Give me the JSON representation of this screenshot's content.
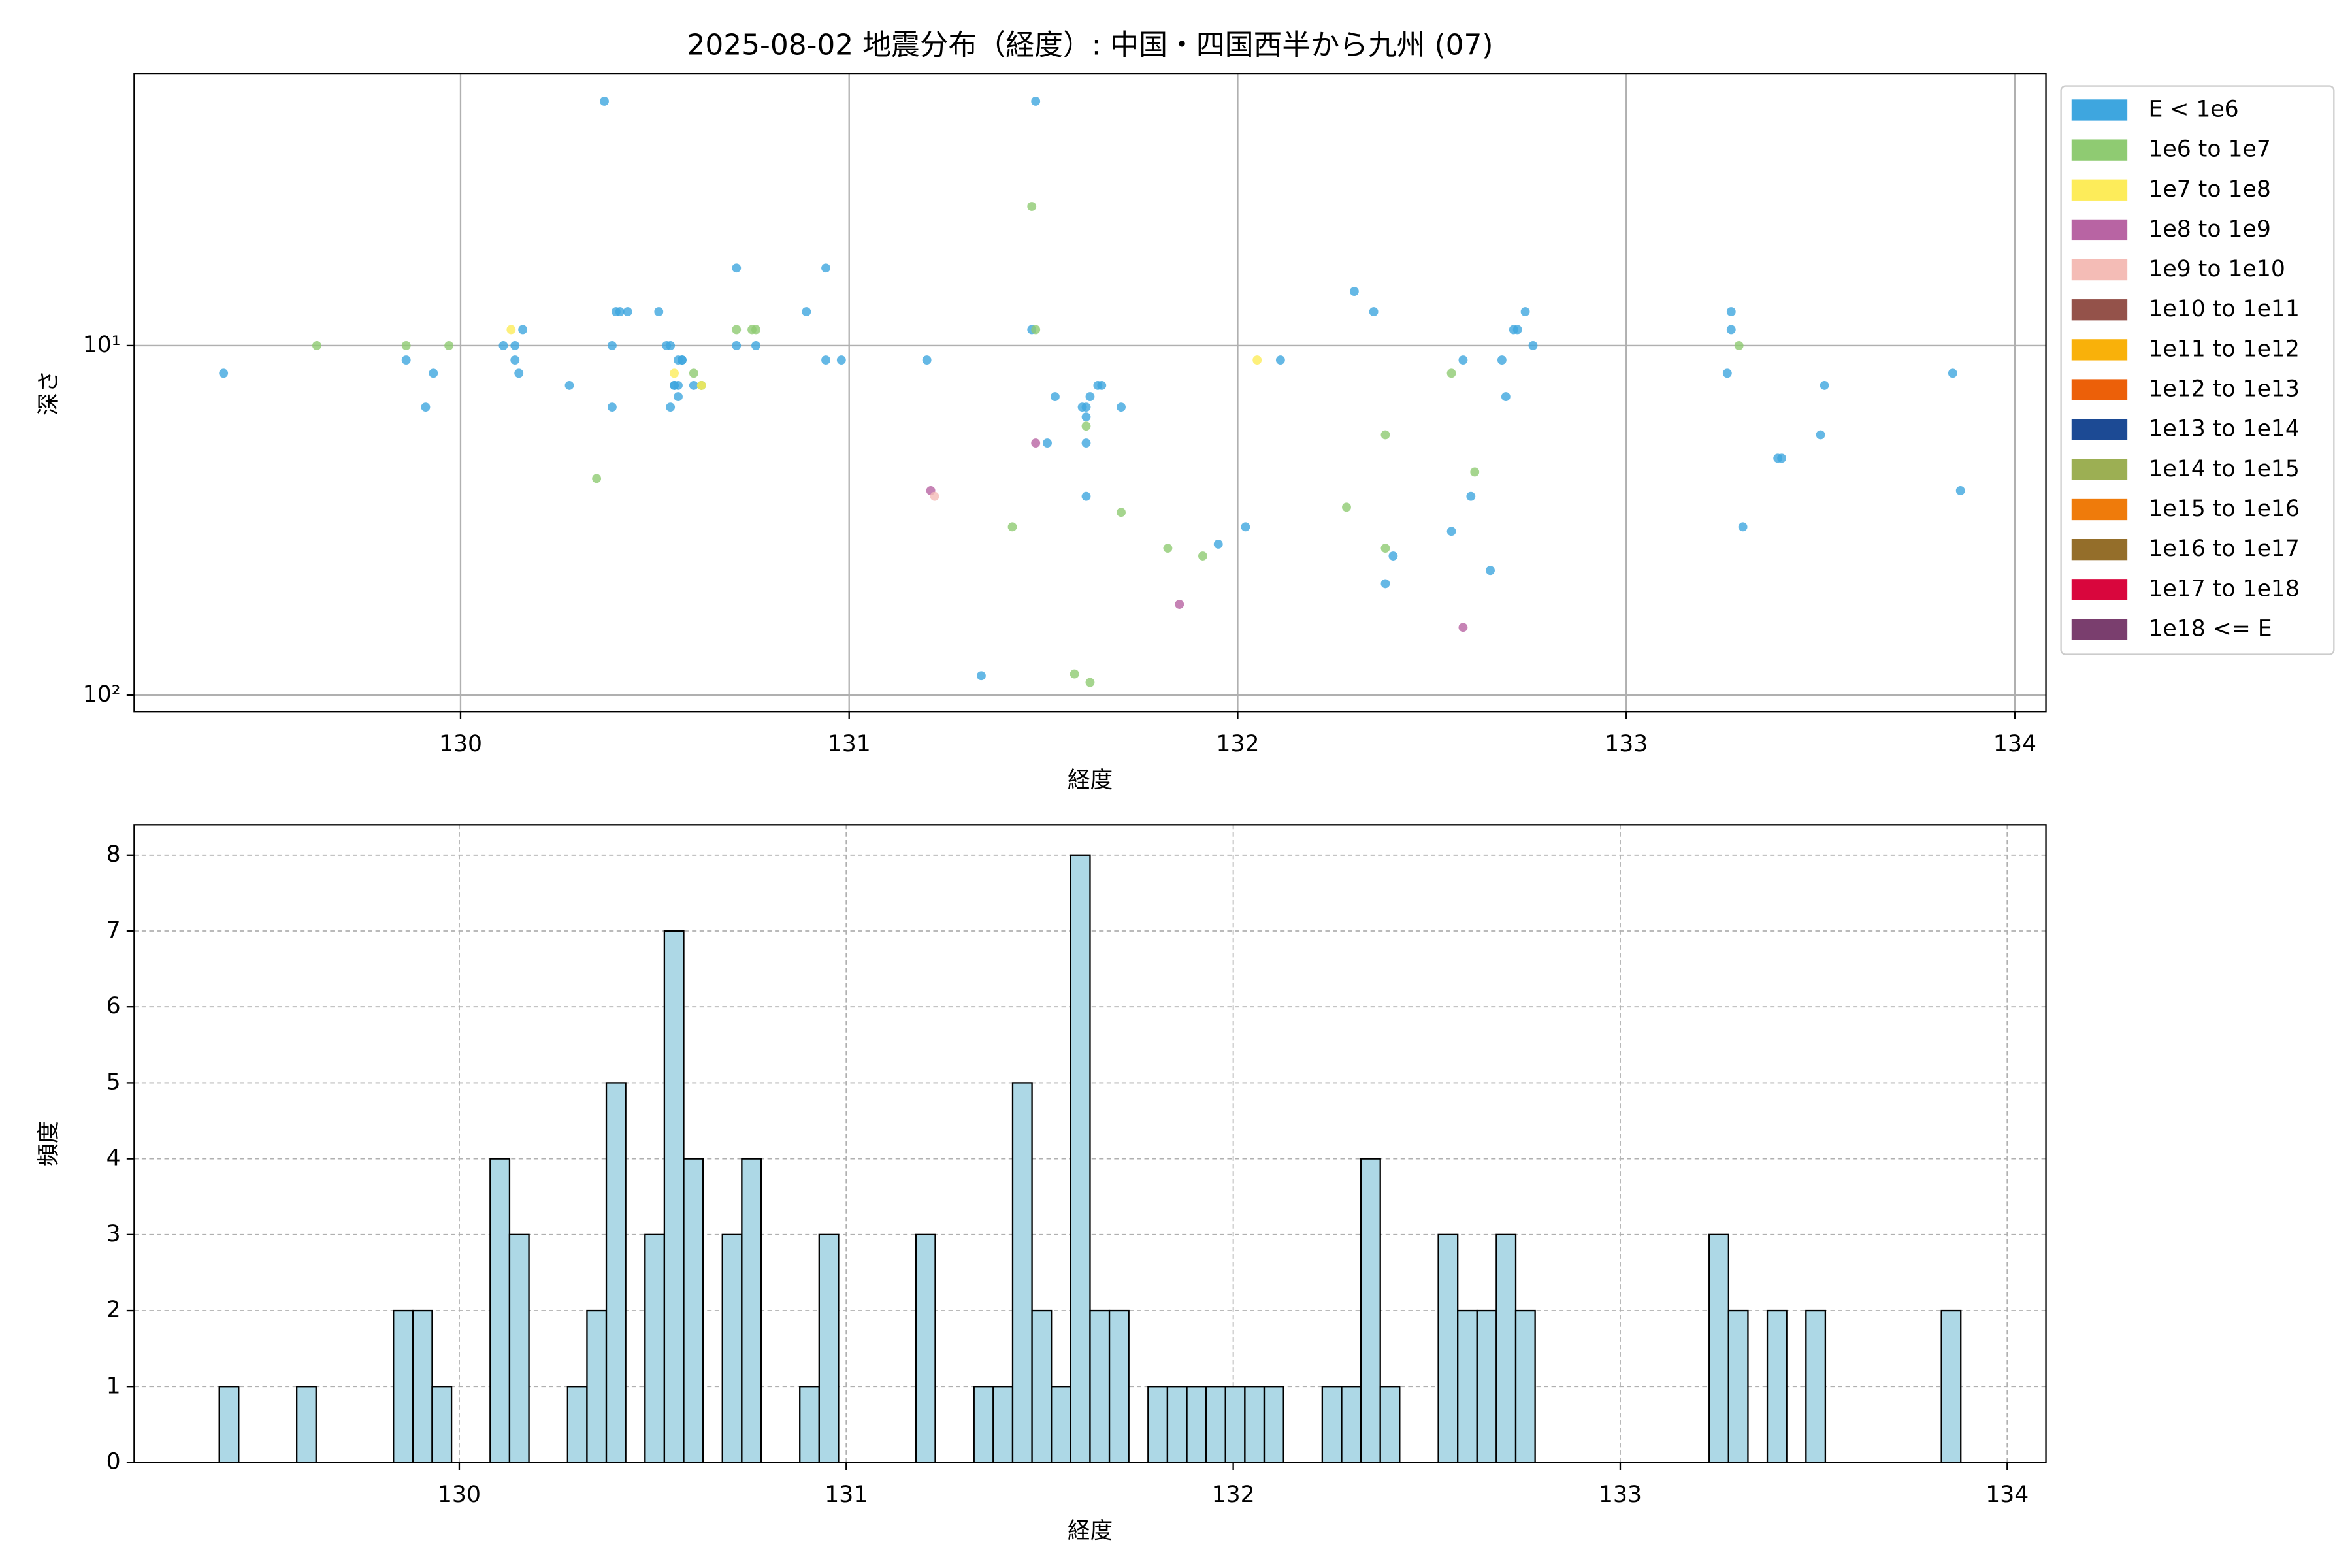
{
  "chart_data": [
    {
      "type": "scatter",
      "title": "2025-08-02 地震分布（経度）: 中国・四国西半から九州 (07)",
      "x_label": "経度",
      "y_label": "深さ",
      "xlim": [
        129.16,
        134.08
      ],
      "xticks": [
        130,
        131,
        132,
        133,
        134
      ],
      "yscale": "log",
      "y_inverted": true,
      "ylim": [
        1.67,
        111.5
      ],
      "yticks": [
        {
          "value": 10,
          "label": "10¹"
        },
        {
          "value": 100,
          "label": "10²"
        }
      ],
      "grid": true,
      "grid_style": "solid",
      "legend": "outside-right",
      "series": [
        {
          "name": "E < 1e6",
          "color": "#3ea6df",
          "x": [
            129.39,
            129.86,
            129.91,
            129.93,
            130.11,
            130.14,
            130.14,
            130.15,
            130.16,
            130.28,
            130.37,
            130.39,
            130.39,
            130.4,
            130.41,
            130.43,
            130.51,
            130.53,
            130.54,
            130.54,
            130.55,
            130.55,
            130.56,
            130.56,
            130.56,
            130.57,
            130.57,
            130.6,
            130.62,
            130.71,
            130.71,
            130.76,
            130.89,
            130.94,
            130.94,
            130.98,
            131.2,
            131.34,
            131.47,
            131.48,
            131.51,
            131.53,
            131.6,
            131.61,
            131.61,
            131.61,
            131.61,
            131.62,
            131.64,
            131.65,
            131.7,
            131.95,
            132.02,
            132.11,
            132.3,
            132.35,
            132.38,
            132.4,
            132.55,
            132.58,
            132.6,
            132.65,
            132.68,
            132.69,
            132.71,
            132.72,
            132.74,
            132.76,
            133.26,
            133.27,
            133.27,
            133.3,
            133.39,
            133.4,
            133.5,
            133.51,
            133.84,
            133.86
          ],
          "values": [
            12,
            11,
            15,
            12,
            10,
            11,
            10,
            12,
            9,
            13,
            2,
            10,
            15,
            8,
            8,
            8,
            8,
            10,
            15,
            10,
            13,
            13,
            11,
            14,
            13,
            11,
            11,
            13,
            13,
            10,
            6,
            10,
            8,
            6,
            11,
            11,
            11,
            88,
            9,
            2,
            19,
            14,
            15,
            27,
            15,
            19,
            16,
            14,
            13,
            13,
            15,
            37,
            33,
            11,
            7,
            8,
            48,
            40,
            34,
            11,
            27,
            44,
            11,
            14,
            9,
            9,
            8,
            10,
            12,
            9,
            8,
            33,
            21,
            21,
            18,
            13,
            12,
            26
          ]
        },
        {
          "name": "1e6 to 1e7",
          "color": "#8fcb72",
          "x": [
            129.63,
            129.86,
            129.97,
            130.35,
            130.6,
            130.62,
            130.71,
            130.75,
            130.76,
            131.42,
            131.47,
            131.48,
            131.58,
            131.61,
            131.62,
            131.7,
            131.82,
            131.91,
            132.28,
            132.38,
            132.38,
            132.55,
            132.61,
            133.29
          ],
          "values": [
            10,
            10,
            10,
            24,
            12,
            13,
            9,
            9,
            9,
            33,
            4,
            9,
            87,
            17,
            92,
            30,
            38,
            40,
            29,
            18,
            38,
            12,
            23,
            10
          ]
        },
        {
          "name": "1e7 to 1e8",
          "color": "#fdec5a",
          "x": [
            130.13,
            130.55,
            130.62,
            132.05
          ],
          "values": [
            9,
            12,
            13,
            11
          ]
        },
        {
          "name": "1e8 to 1e9",
          "color": "#b864a3",
          "x": [
            131.21,
            131.48,
            131.85,
            132.58
          ],
          "values": [
            26,
            19,
            55,
            64
          ]
        },
        {
          "name": "1e9 to 1e10",
          "color": "#f4bcb6",
          "x": [
            131.22
          ],
          "values": [
            27
          ]
        },
        {
          "name": "1e10 to 1e11",
          "color": "#94524a",
          "x": [],
          "values": []
        },
        {
          "name": "1e11 to 1e12",
          "color": "#f9b10a",
          "x": [],
          "values": []
        },
        {
          "name": "1e12 to 1e13",
          "color": "#ec6009",
          "x": [],
          "values": []
        },
        {
          "name": "1e13 to 1e14",
          "color": "#1c4a94",
          "x": [],
          "values": []
        },
        {
          "name": "1e14 to 1e15",
          "color": "#9caf53",
          "x": [],
          "values": []
        },
        {
          "name": "1e15 to 1e16",
          "color": "#ef7b0b",
          "x": [],
          "values": []
        },
        {
          "name": "1e16 to 1e17",
          "color": "#946e2a",
          "x": [],
          "values": []
        },
        {
          "name": "1e17 to 1e18",
          "color": "#d9063d",
          "x": [],
          "values": []
        },
        {
          "name": "1e18 <= E",
          "color": "#7a3e6e",
          "x": [],
          "values": []
        }
      ]
    },
    {
      "type": "histogram",
      "x_label": "経度",
      "y_label": "頻度",
      "xlim": [
        129.16,
        134.1
      ],
      "xticks": [
        130,
        131,
        132,
        133,
        134
      ],
      "ylim": [
        0,
        8.4
      ],
      "yticks": [
        0,
        1,
        2,
        3,
        4,
        5,
        6,
        7,
        8
      ],
      "grid": true,
      "grid_style": "dashed",
      "color": "#add8e6",
      "edgecolor": "#000000",
      "bins": [
        129.38,
        129.43,
        129.48,
        129.53,
        129.58,
        129.63,
        129.68,
        129.73,
        129.78,
        129.83,
        129.88,
        129.93,
        129.98,
        130.03,
        130.08,
        130.13,
        130.18,
        130.23,
        130.28,
        130.33,
        130.38,
        130.43,
        130.48,
        130.53,
        130.58,
        130.63,
        130.68,
        130.73,
        130.78,
        130.83,
        130.88,
        130.93,
        130.98,
        131.03,
        131.08,
        131.13,
        131.18,
        131.23,
        131.28,
        131.33,
        131.38,
        131.43,
        131.48,
        131.53,
        131.58,
        131.63,
        131.68,
        131.73,
        131.78,
        131.83,
        131.88,
        131.93,
        131.98,
        132.03,
        132.08,
        132.13,
        132.18,
        132.23,
        132.28,
        132.33,
        132.38,
        132.43,
        132.48,
        132.53,
        132.58,
        132.63,
        132.68,
        132.73,
        132.78,
        132.83,
        132.88,
        132.93,
        132.98,
        133.03,
        133.08,
        133.13,
        133.18,
        133.23,
        133.28,
        133.33,
        133.38,
        133.43,
        133.48,
        133.53,
        133.58,
        133.63,
        133.68,
        133.73,
        133.78,
        133.83,
        133.88
      ],
      "values": [
        1,
        0,
        0,
        0,
        1,
        0,
        0,
        0,
        0,
        2,
        2,
        1,
        0,
        0,
        4,
        3,
        0,
        0,
        1,
        2,
        5,
        0,
        3,
        7,
        4,
        0,
        3,
        4,
        0,
        0,
        1,
        3,
        0,
        0,
        0,
        0,
        3,
        0,
        0,
        1,
        1,
        5,
        2,
        1,
        8,
        2,
        2,
        0,
        1,
        1,
        1,
        1,
        1,
        1,
        1,
        0,
        0,
        1,
        1,
        4,
        1,
        0,
        0,
        3,
        2,
        2,
        3,
        2,
        0,
        0,
        0,
        0,
        0,
        0,
        0,
        0,
        0,
        3,
        2,
        0,
        2,
        0,
        2,
        0,
        0,
        0,
        0,
        0,
        0,
        2
      ]
    }
  ]
}
